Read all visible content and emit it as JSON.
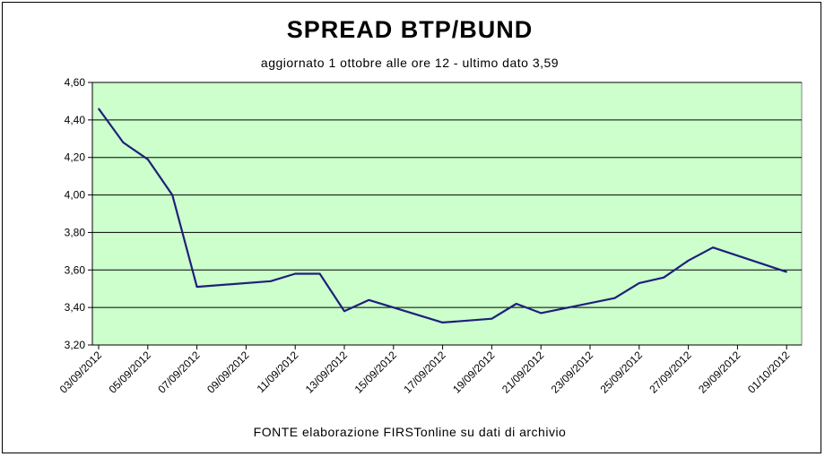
{
  "chart_data": {
    "type": "line",
    "title": "SPREAD  BTP/BUND",
    "subtitle": "aggiornato 1 ottobre alle ore 12 - ultimo dato 3,59",
    "source": "FONTE elaborazione FIRSTonline su dati di archivio",
    "xlabel": "",
    "ylabel": "",
    "ylim": [
      3.2,
      4.6
    ],
    "yticks": [
      "3,20",
      "3,40",
      "3,60",
      "3,80",
      "4,00",
      "4,20",
      "4,40",
      "4,60"
    ],
    "xticks": [
      "03/09/2012",
      "05/09/2012",
      "07/09/2012",
      "09/09/2012",
      "11/09/2012",
      "13/09/2012",
      "15/09/2012",
      "17/09/2012",
      "19/09/2012",
      "21/09/2012",
      "23/09/2012",
      "25/09/2012",
      "27/09/2012",
      "29/09/2012",
      "01/10/2012"
    ],
    "grid": true,
    "plot_background": "#CCFFCC",
    "line_color": "#1F1F7A",
    "series": [
      {
        "x": [
          "03/09/2012",
          "04/09/2012",
          "05/09/2012",
          "06/09/2012",
          "07/09/2012",
          "10/09/2012",
          "11/09/2012",
          "12/09/2012",
          "13/09/2012",
          "14/09/2012",
          "17/09/2012",
          "18/09/2012",
          "19/09/2012",
          "20/09/2012",
          "21/09/2012",
          "24/09/2012",
          "25/09/2012",
          "26/09/2012",
          "27/09/2012",
          "28/09/2012",
          "01/10/2012"
        ],
        "values": [
          4.46,
          4.28,
          4.19,
          4.0,
          3.51,
          3.54,
          3.58,
          3.58,
          3.38,
          3.44,
          3.32,
          3.33,
          3.34,
          3.42,
          3.37,
          3.45,
          3.53,
          3.56,
          3.65,
          3.72,
          3.59
        ]
      }
    ]
  }
}
